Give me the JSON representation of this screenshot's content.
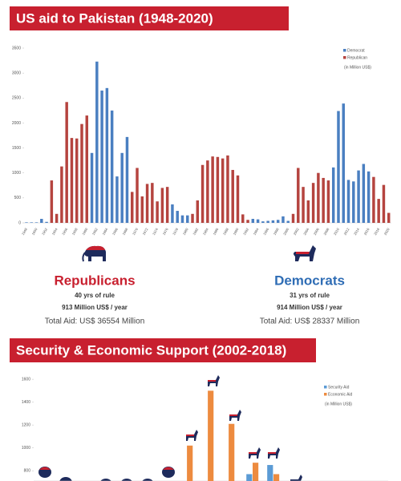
{
  "chart_data": [
    {
      "type": "bar",
      "title": "US aid to Pakistan (1948-2020)",
      "note": "(in Million US$)",
      "categories": [
        "1948",
        null,
        "1950",
        null,
        "1952",
        null,
        "1954",
        null,
        "1956",
        null,
        "1958",
        null,
        "1960",
        null,
        "1962",
        null,
        "1964",
        null,
        "1966",
        null,
        "1968",
        null,
        "1970",
        null,
        "1972",
        null,
        "1974",
        null,
        "1976",
        null,
        "1978",
        null,
        "1980",
        null,
        "1982",
        null,
        "1984",
        null,
        "1986",
        null,
        "1988",
        null,
        "1990",
        null,
        "1992",
        null,
        "1994",
        null,
        "1996",
        null,
        "1998",
        null,
        "2000",
        null,
        "2002",
        null,
        "2004",
        null,
        "2006",
        null,
        "2008",
        null,
        "2010",
        null,
        "2012",
        null,
        "2014",
        null,
        "2016",
        null,
        "2018",
        null,
        "2020"
      ],
      "series": [
        {
          "name": "Democrat",
          "color": "#4a7fc1",
          "values": [
            10,
            10,
            10,
            80,
            20,
            null,
            null,
            null,
            null,
            null,
            null,
            null,
            null,
            1400,
            3230,
            2650,
            2700,
            2250,
            930,
            1400,
            1720,
            null,
            null,
            null,
            null,
            null,
            null,
            null,
            null,
            370,
            240,
            150,
            150,
            null,
            null,
            null,
            null,
            null,
            null,
            null,
            null,
            null,
            null,
            null,
            null,
            80,
            70,
            30,
            40,
            50,
            60,
            130,
            40,
            null,
            null,
            null,
            null,
            null,
            null,
            null,
            null,
            1110,
            2240,
            2390,
            860,
            830,
            1050,
            1180,
            1030,
            null,
            null,
            null,
            null
          ]
        },
        {
          "name": "Republican",
          "color": "#b5443f",
          "values": [
            null,
            null,
            null,
            null,
            null,
            850,
            180,
            1130,
            2420,
            1700,
            1690,
            1980,
            2150,
            null,
            null,
            null,
            null,
            null,
            null,
            null,
            null,
            620,
            1100,
            530,
            780,
            800,
            430,
            700,
            720,
            null,
            null,
            null,
            null,
            180,
            450,
            1160,
            1250,
            1330,
            1320,
            1290,
            1350,
            1060,
            950,
            170,
            60,
            null,
            null,
            null,
            null,
            null,
            null,
            null,
            null,
            180,
            1100,
            720,
            450,
            800,
            1000,
            900,
            850,
            null,
            null,
            null,
            null,
            null,
            null,
            null,
            null,
            920,
            480,
            760,
            200
          ]
        }
      ],
      "ylim": [
        0,
        3500
      ],
      "yticks": [
        0,
        500,
        1000,
        1500,
        2000,
        2500,
        3000,
        3500
      ],
      "grid": false
    },
    {
      "type": "bar",
      "title": "Security & Economic Support (2002-2018)",
      "note": "(in Million US$)",
      "categories": [
        null,
        null,
        null,
        null,
        null,
        null,
        null,
        null,
        null,
        null,
        null,
        null,
        null,
        null,
        null,
        null,
        null
      ],
      "series": [
        {
          "name": "Security Aid",
          "color": "#5b9bd5",
          "values": [
            null,
            null,
            null,
            null,
            null,
            null,
            null,
            null,
            null,
            null,
            770,
            850,
            null,
            null,
            null,
            null,
            null
          ]
        },
        {
          "name": "Economic Aid",
          "color": "#ed8b3f",
          "values": [
            null,
            null,
            null,
            null,
            null,
            null,
            null,
            1020,
            1500,
            1210,
            870,
            770,
            null,
            null,
            null,
            null,
            null
          ]
        }
      ],
      "ylim": [
        710,
        1650
      ],
      "yticks": [
        800,
        1000,
        1200,
        1400,
        1600
      ],
      "grid": false
    }
  ],
  "parties": [
    {
      "name": "Republicans",
      "rule": "40 yrs of rule",
      "rate": "913 Million US$ / year",
      "total": "Total Aid: US$ 36554 Million"
    },
    {
      "name": "Democrats",
      "rule": "31 yrs of rule",
      "rate": "914 Million US$ / year",
      "total": "Total Aid: US$ 28337 Million"
    }
  ]
}
